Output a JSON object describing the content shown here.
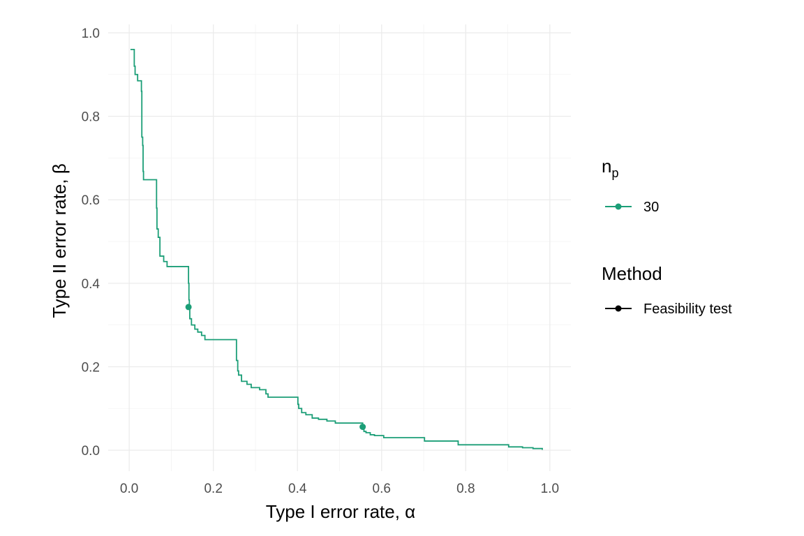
{
  "chart_data": {
    "type": "line",
    "title": "",
    "xlabel": "Type I error rate, α",
    "ylabel": "Type II error rate, β",
    "xlim": [
      -0.05,
      1.05
    ],
    "ylim": [
      -0.05,
      1.02
    ],
    "x_ticks": [
      "0.0",
      "0.2",
      "0.4",
      "0.6",
      "0.8",
      "1.0"
    ],
    "y_ticks": [
      "0.0",
      "0.2",
      "0.4",
      "0.6",
      "0.8",
      "1.0"
    ],
    "grid": true,
    "legend_position": "right",
    "series": [
      {
        "name": "30",
        "color": "#1b9e77",
        "style": "step",
        "points": [
          [
            0.003,
            0.96
          ],
          [
            0.01,
            0.96
          ],
          [
            0.012,
            0.957
          ],
          [
            0.012,
            0.92
          ],
          [
            0.014,
            0.9
          ],
          [
            0.02,
            0.885
          ],
          [
            0.028,
            0.885
          ],
          [
            0.029,
            0.86
          ],
          [
            0.03,
            0.75
          ],
          [
            0.032,
            0.73
          ],
          [
            0.033,
            0.668
          ],
          [
            0.034,
            0.648
          ],
          [
            0.062,
            0.648
          ],
          [
            0.065,
            0.58
          ],
          [
            0.066,
            0.53
          ],
          [
            0.069,
            0.51
          ],
          [
            0.073,
            0.465
          ],
          [
            0.082,
            0.452
          ],
          [
            0.09,
            0.44
          ],
          [
            0.14,
            0.44
          ],
          [
            0.141,
            0.4
          ],
          [
            0.142,
            0.36
          ],
          [
            0.143,
            0.343
          ],
          [
            0.144,
            0.315
          ],
          [
            0.148,
            0.3
          ],
          [
            0.156,
            0.29
          ],
          [
            0.163,
            0.283
          ],
          [
            0.172,
            0.275
          ],
          [
            0.18,
            0.265
          ],
          [
            0.253,
            0.265
          ],
          [
            0.255,
            0.215
          ],
          [
            0.258,
            0.19
          ],
          [
            0.26,
            0.18
          ],
          [
            0.267,
            0.165
          ],
          [
            0.28,
            0.158
          ],
          [
            0.29,
            0.15
          ],
          [
            0.31,
            0.145
          ],
          [
            0.325,
            0.135
          ],
          [
            0.33,
            0.127
          ],
          [
            0.4,
            0.127
          ],
          [
            0.401,
            0.11
          ],
          [
            0.403,
            0.1
          ],
          [
            0.41,
            0.09
          ],
          [
            0.42,
            0.085
          ],
          [
            0.435,
            0.077
          ],
          [
            0.45,
            0.074
          ],
          [
            0.47,
            0.07
          ],
          [
            0.49,
            0.065
          ],
          [
            0.553,
            0.065
          ],
          [
            0.555,
            0.056
          ],
          [
            0.558,
            0.045
          ],
          [
            0.563,
            0.042
          ],
          [
            0.573,
            0.037
          ],
          [
            0.583,
            0.035
          ],
          [
            0.605,
            0.03
          ],
          [
            0.7,
            0.03
          ],
          [
            0.702,
            0.022
          ],
          [
            0.78,
            0.022
          ],
          [
            0.782,
            0.013
          ],
          [
            0.9,
            0.013
          ],
          [
            0.902,
            0.008
          ],
          [
            0.935,
            0.006
          ],
          [
            0.96,
            0.004
          ],
          [
            0.982,
            0.001
          ]
        ],
        "highlight_points": [
          [
            0.141,
            0.343
          ],
          [
            0.555,
            0.056
          ]
        ]
      }
    ]
  },
  "legend": {
    "np_title": "n",
    "np_subscript": "p",
    "np_entries": [
      {
        "label": "30",
        "color": "#1b9e77"
      }
    ],
    "method_title": "Method",
    "method_entries": [
      {
        "label": "Feasibility test",
        "color": "#000000"
      }
    ]
  }
}
